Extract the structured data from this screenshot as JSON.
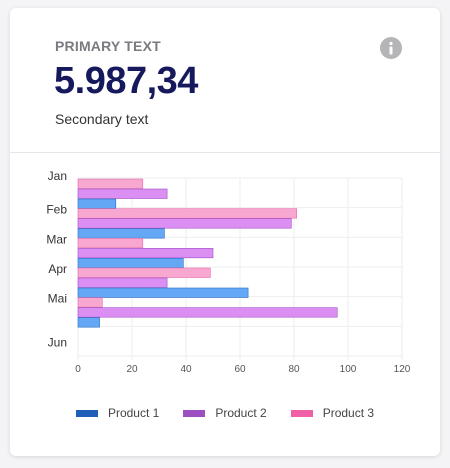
{
  "header": {
    "primary_label": "PRIMARY TEXT",
    "value": "5.987,34",
    "secondary_label": "Secondary text",
    "info_icon": "info-icon"
  },
  "colors": {
    "product1": "#64a8f5",
    "product1_legend": "#1f5fb8",
    "product2": "#dc8ff2",
    "product2_legend": "#9b4fc0",
    "product3": "#f8a8d0",
    "product3_legend": "#f060a6",
    "title": "#161a5c",
    "grid": "#eeeeee"
  },
  "chart_data": {
    "type": "bar",
    "orientation": "horizontal",
    "categories": [
      "Jan",
      "Feb",
      "Mar",
      "Apr",
      "Mai",
      "Jun"
    ],
    "series": [
      {
        "name": "Product 1",
        "values": [
          14,
          32,
          39,
          63,
          8,
          0
        ]
      },
      {
        "name": "Product 2",
        "values": [
          33,
          79,
          50,
          33,
          96,
          0
        ]
      },
      {
        "name": "Product 3",
        "values": [
          24,
          81,
          24,
          49,
          9,
          0
        ]
      }
    ],
    "xlim": [
      0,
      120
    ],
    "xticks": [
      0,
      20,
      40,
      60,
      80,
      100,
      120
    ],
    "grid": true,
    "legend_position": "bottom"
  }
}
